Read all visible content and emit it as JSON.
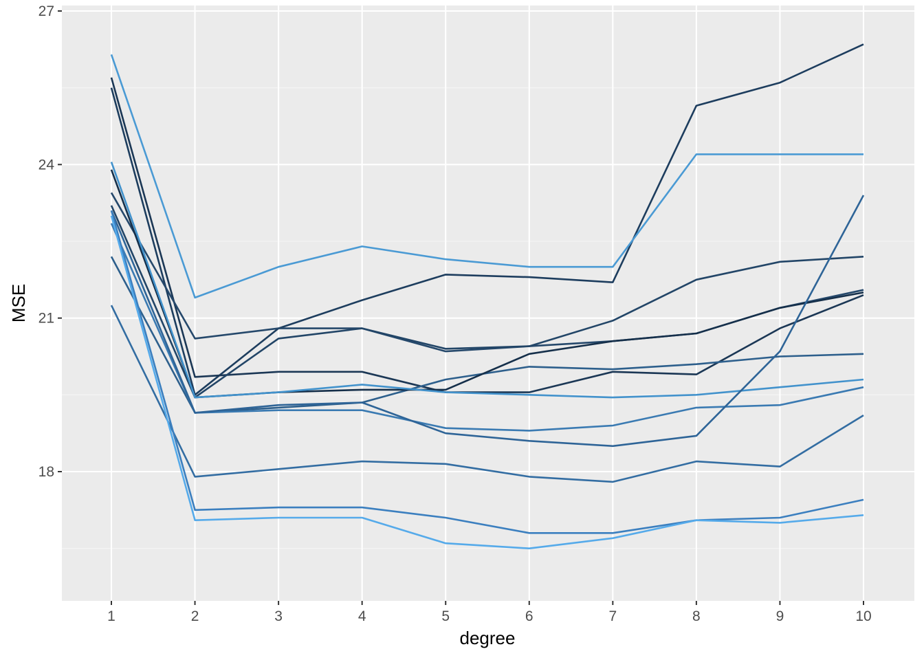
{
  "chart_data": {
    "type": "line",
    "xlabel": "degree",
    "ylabel": "MSE",
    "x": [
      1,
      2,
      3,
      4,
      5,
      6,
      7,
      8,
      9,
      10
    ],
    "xticks": [
      "1",
      "2",
      "3",
      "4",
      "5",
      "6",
      "7",
      "8",
      "9",
      "10"
    ],
    "yticks": [
      18,
      21,
      24,
      27
    ],
    "ylim": [
      15.5,
      27.0
    ],
    "grid": true,
    "legend": "none",
    "colors": {
      "panel": "#ebebeb",
      "grid_major": "#ffffff",
      "grid_minor": "#f5f5f5"
    },
    "series": [
      {
        "color": "#1d3d5e",
        "values": [
          25.5,
          19.5,
          20.8,
          21.35,
          21.85,
          21.8,
          21.7,
          25.15,
          25.6,
          26.35
        ]
      },
      {
        "color": "#4a9ad4",
        "values": [
          26.15,
          21.4,
          22.0,
          22.4,
          22.15,
          22.0,
          22.0,
          24.2,
          24.2,
          24.2
        ]
      },
      {
        "color": "#1b3755",
        "values": [
          25.7,
          19.85,
          19.95,
          19.95,
          19.55,
          19.55,
          19.95,
          19.9,
          20.8,
          21.45
        ]
      },
      {
        "color": "#2d5f8c",
        "values": [
          22.2,
          19.15,
          19.25,
          19.35,
          19.8,
          20.05,
          20.0,
          20.1,
          20.25,
          20.3
        ]
      },
      {
        "color": "#25486b",
        "values": [
          23.45,
          20.6,
          20.8,
          20.8,
          20.35,
          20.45,
          20.55,
          20.7,
          21.2,
          21.55
        ]
      },
      {
        "color": "#224567",
        "values": [
          23.2,
          19.45,
          20.6,
          20.8,
          20.4,
          20.45,
          20.95,
          21.75,
          22.1,
          22.2
        ]
      },
      {
        "color": "#152f4a",
        "values": [
          23.9,
          19.45,
          19.55,
          19.6,
          19.6,
          20.3,
          20.55,
          20.7,
          21.2,
          21.5
        ]
      },
      {
        "color": "#4292cc",
        "values": [
          24.05,
          19.45,
          19.55,
          19.7,
          19.55,
          19.5,
          19.45,
          19.5,
          19.65,
          19.8
        ]
      },
      {
        "color": "#3a7ab2",
        "values": [
          22.85,
          19.15,
          19.2,
          19.2,
          18.85,
          18.8,
          18.9,
          19.25,
          19.3,
          19.65
        ]
      },
      {
        "color": "#2e6497",
        "values": [
          23.1,
          19.15,
          19.3,
          19.35,
          18.75,
          18.6,
          18.5,
          18.7,
          20.35,
          23.4
        ]
      },
      {
        "color": "#336da2",
        "values": [
          21.25,
          17.9,
          18.05,
          18.2,
          18.15,
          17.9,
          17.8,
          18.2,
          18.1,
          19.1
        ]
      },
      {
        "color": "#3b7fbf",
        "values": [
          23.1,
          17.25,
          17.3,
          17.3,
          17.1,
          16.8,
          16.8,
          17.05,
          17.1,
          17.45
        ]
      },
      {
        "color": "#55aaea",
        "values": [
          23.0,
          17.05,
          17.1,
          17.1,
          16.6,
          16.5,
          16.7,
          17.05,
          17.0,
          17.15
        ]
      }
    ]
  }
}
